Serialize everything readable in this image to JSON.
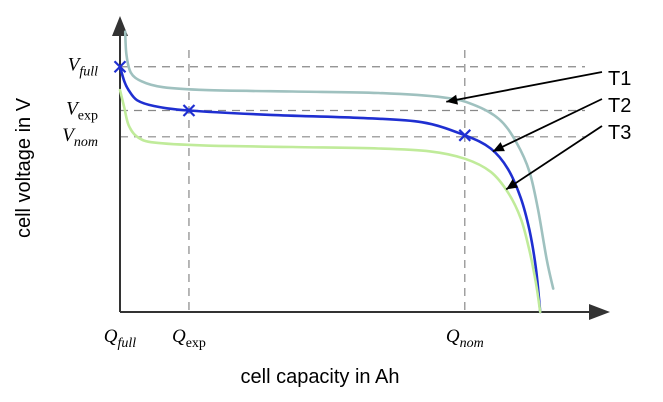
{
  "chart_data": {
    "type": "line",
    "title": "",
    "xlabel": "cell capacity in Ah",
    "ylabel": "cell voltage in V",
    "xlim": [
      0,
      100
    ],
    "ylim": [
      0,
      100
    ],
    "x_ticks": [
      {
        "key": "full",
        "main": "Q",
        "sub": "full",
        "x": 0
      },
      {
        "key": "exp",
        "main": "Q",
        "sub": "exp",
        "x": 16
      },
      {
        "key": "nom",
        "main": "Q",
        "sub": "nom",
        "x": 80
      }
    ],
    "y_ticks": [
      {
        "key": "full",
        "main": "V",
        "sub": "full",
        "y": 84
      },
      {
        "key": "exp",
        "main": "V",
        "sub": "exp",
        "y": 69
      },
      {
        "key": "nom",
        "main": "V",
        "sub": "nom",
        "y": 60
      }
    ],
    "series": [
      {
        "name": "T1",
        "color": "#9fc1bf",
        "points": [
          [
            1.2,
            96
          ],
          [
            1.5,
            88
          ],
          [
            2.5,
            82
          ],
          [
            5,
            79
          ],
          [
            10,
            77
          ],
          [
            20,
            76
          ],
          [
            40,
            75.5
          ],
          [
            60,
            75
          ],
          [
            75,
            73.5
          ],
          [
            82,
            71
          ],
          [
            88,
            66
          ],
          [
            92,
            58
          ],
          [
            95,
            48
          ],
          [
            97,
            35
          ],
          [
            99,
            18
          ],
          [
            100.5,
            8
          ]
        ]
      },
      {
        "name": "T2",
        "color": "#1f2fd1",
        "points": [
          [
            0,
            84
          ],
          [
            1,
            79
          ],
          [
            2,
            76
          ],
          [
            4,
            72.5
          ],
          [
            8,
            70.5
          ],
          [
            16,
            69
          ],
          [
            35,
            67.5
          ],
          [
            55,
            66.5
          ],
          [
            70,
            65
          ],
          [
            80,
            60.5
          ],
          [
            86,
            56
          ],
          [
            90,
            49
          ],
          [
            93,
            39
          ],
          [
            95,
            28
          ],
          [
            96.5,
            15
          ],
          [
            97.5,
            0
          ]
        ]
      },
      {
        "name": "T3",
        "color": "#c0eb9a",
        "points": [
          [
            0,
            76
          ],
          [
            1,
            70
          ],
          [
            2,
            64
          ],
          [
            4,
            60
          ],
          [
            8,
            58
          ],
          [
            20,
            57
          ],
          [
            40,
            56.5
          ],
          [
            60,
            56
          ],
          [
            72,
            55
          ],
          [
            80,
            52.5
          ],
          [
            86,
            48
          ],
          [
            90,
            41
          ],
          [
            93,
            32
          ],
          [
            95,
            21
          ],
          [
            96.5,
            10
          ],
          [
            97.5,
            0
          ]
        ]
      }
    ],
    "markers": [
      {
        "label": "×",
        "x": 0,
        "y": 84,
        "color": "#1f2fd1"
      },
      {
        "label": "×",
        "x": 16,
        "y": 69,
        "color": "#1f2fd1"
      },
      {
        "label": "×",
        "x": 80,
        "y": 60.5,
        "color": "#1f2fd1"
      }
    ],
    "callouts": [
      {
        "series": "T1",
        "text": "T1",
        "from_x": 75.7,
        "from_y": 72
      },
      {
        "series": "T2",
        "text": "T2",
        "from_x": 86.5,
        "from_y": 55
      },
      {
        "series": "T3",
        "text": "T3",
        "from_x": 89.6,
        "from_y": 42
      }
    ]
  }
}
